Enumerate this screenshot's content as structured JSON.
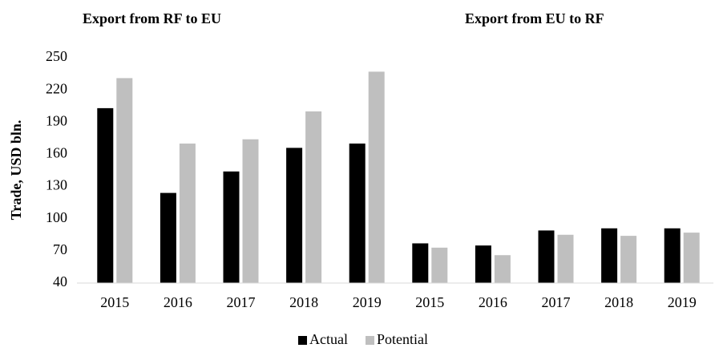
{
  "chart_data": {
    "type": "bar",
    "annotations": [
      "Export from RF to EU",
      "Export from EU to RF"
    ],
    "y_label": "Trade, USD bln.",
    "categories": [
      "2015",
      "2016",
      "2017",
      "2018",
      "2019",
      "2015",
      "2016",
      "2017",
      "2018",
      "2019"
    ],
    "series": [
      {
        "name": "Actual",
        "color": "#000000",
        "values": [
          203,
          124,
          144,
          166,
          170,
          77,
          75,
          89,
          91,
          91
        ]
      },
      {
        "name": "Potential",
        "color": "#bfbfbf",
        "values": [
          231,
          170,
          174,
          200,
          237,
          73,
          66,
          85,
          84,
          87
        ]
      }
    ],
    "ylim": [
      40,
      250
    ],
    "yticks": [
      40,
      70,
      100,
      130,
      160,
      190,
      220,
      250
    ],
    "grid": false,
    "legend": "bottom"
  }
}
